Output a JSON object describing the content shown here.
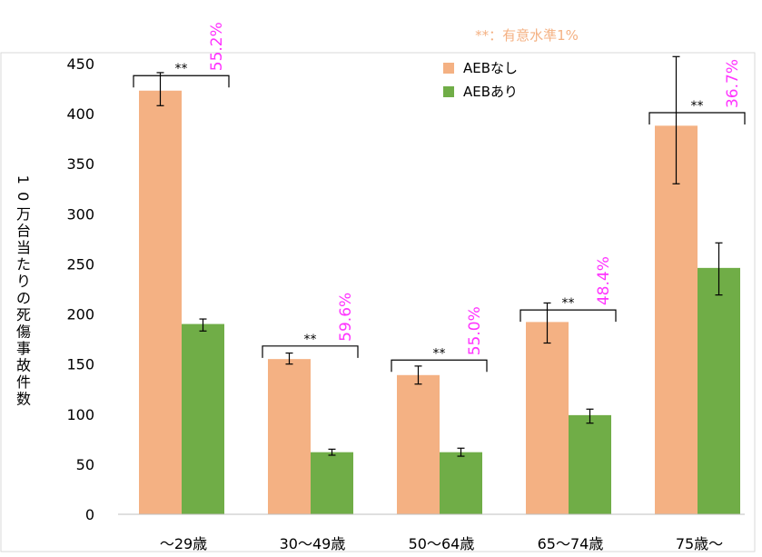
{
  "chart_data": {
    "type": "bar",
    "ylabel": "10万台当たりの死傷事故件数",
    "categories": [
      "～29歳",
      "30～49歳",
      "50～64歳",
      "65～74歳",
      "75歳～"
    ],
    "ylim": [
      0,
      450
    ],
    "y_ticks": [
      0,
      50,
      100,
      150,
      200,
      250,
      300,
      350,
      400,
      450
    ],
    "grid": false,
    "legend_position": "top-center",
    "series": [
      {
        "name": "AEBなし",
        "color": "#f4b183",
        "values": [
          423,
          155,
          139,
          192,
          388
        ],
        "error_low": [
          408,
          150,
          130,
          171,
          330
        ],
        "error_high": [
          441,
          161,
          148,
          211,
          457
        ]
      },
      {
        "name": "AEBあり",
        "color": "#70ad47",
        "values": [
          190,
          62,
          62,
          99,
          246
        ],
        "error_low": [
          183,
          59,
          58,
          91,
          219
        ],
        "error_high": [
          195,
          65,
          66,
          105,
          271
        ]
      }
    ],
    "annotations": {
      "significance_note": "**：有意水準1%",
      "significance_color": "#f4b183",
      "reduction_color": "#ff33ff",
      "brackets": [
        {
          "mark": "**",
          "reduction": "55.2%",
          "level": 438
        },
        {
          "mark": "**",
          "reduction": "59.6%",
          "level": 168
        },
        {
          "mark": "**",
          "reduction": "55.0%",
          "level": 154
        },
        {
          "mark": "**",
          "reduction": "48.4%",
          "level": 204
        },
        {
          "mark": "**",
          "reduction": "36.7%",
          "level": 401
        }
      ]
    }
  }
}
